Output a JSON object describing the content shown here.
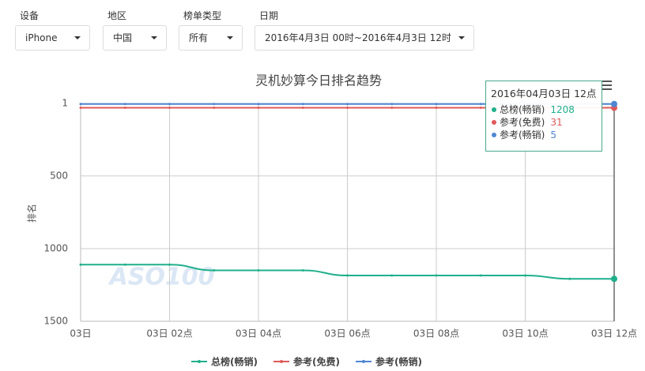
{
  "filters": [
    {
      "label": "设备",
      "value": "iPhone"
    },
    {
      "label": "地区",
      "value": "中国"
    },
    {
      "label": "榜单类型",
      "value": "所有"
    },
    {
      "label": "日期",
      "value": "2016年4月3日 00时~2016年4月3日 12时"
    }
  ],
  "chart_data": {
    "type": "line",
    "title": "灵机妙算今日排名趋势",
    "y_label": "排名",
    "watermark": "ASO100",
    "categories": [
      "03日",
      null,
      "03日 02点",
      null,
      "03日 04点",
      null,
      "03日 06点",
      null,
      "03日 08点",
      null,
      "03日 10点",
      null,
      "03日 12点"
    ],
    "series": [
      {
        "name": "总榜(畅销)",
        "color": "#1fb08b",
        "values": [
          1110,
          1110,
          1110,
          1150,
          1150,
          1150,
          1185,
          1185,
          1185,
          1185,
          1185,
          1208,
          1208
        ]
      },
      {
        "name": "参考(免费)",
        "color": "#e0595a",
        "values": [
          31,
          31,
          31,
          31,
          31,
          31,
          31,
          31,
          31,
          31,
          31,
          31,
          31
        ]
      },
      {
        "name": "参考(畅销)",
        "color": "#4f86d2",
        "values": [
          5,
          5,
          5,
          5,
          5,
          5,
          5,
          5,
          5,
          5,
          5,
          5,
          5
        ]
      }
    ],
    "ylim": [
      1,
      1500
    ],
    "y_inverted": true,
    "yticks": [
      1,
      500,
      1000,
      1500
    ],
    "grid": true,
    "legend": "bottom",
    "tooltip": {
      "title": "2016年04月03日 12点"
    }
  }
}
